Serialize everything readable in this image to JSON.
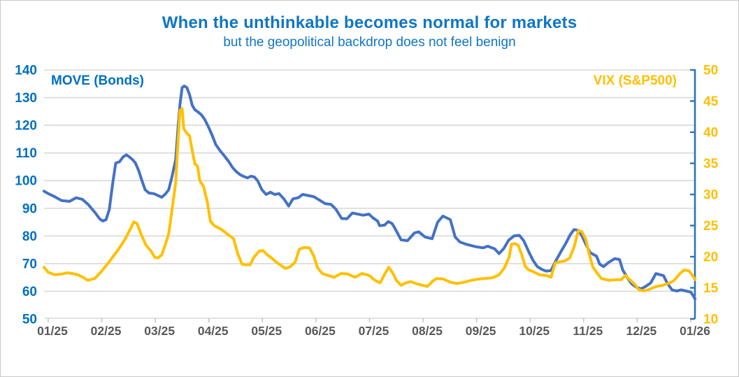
{
  "chart_data": {
    "type": "line",
    "title": "When the unthinkable becomes normal for markets",
    "subtitle": "but the geopolitical backdrop does not feel benign",
    "grid": true,
    "legend_position": "top-inside",
    "colors": {
      "title_text": "#1076c5",
      "left_axis_text": "#0070c0",
      "right_axis_text": "#ffc000",
      "x_axis_text": "#595959",
      "gridline": "#d9d9d9",
      "bottom_tick": "#bfbfbf",
      "right_spine": "#2e74b5",
      "move_line": "#4472c4",
      "vix_line": "#ffc000"
    },
    "x_axis": {
      "tick_labels": [
        "01/25",
        "02/25",
        "03/25",
        "04/25",
        "05/25",
        "06/25",
        "07/25",
        "08/25",
        "09/25",
        "10/25",
        "11/25",
        "12/25",
        "01/26"
      ]
    },
    "y_left": {
      "label": "MOVE (Bonds)",
      "min": 50,
      "max": 140,
      "step": 10,
      "tick_labels": [
        "50",
        "60",
        "70",
        "80",
        "90",
        "100",
        "110",
        "120",
        "130",
        "140"
      ]
    },
    "y_right": {
      "label": "VIX (S&P500)",
      "min": 10,
      "max": 50,
      "step": 5,
      "tick_labels": [
        "10",
        "15",
        "20",
        "25",
        "30",
        "35",
        "40",
        "45",
        "50"
      ]
    },
    "series": [
      {
        "name": "MOVE (Bonds)",
        "axis": "left",
        "color": "#4472c4",
        "points": [
          [
            -0.08,
            96.2
          ],
          [
            0,
            95.3
          ],
          [
            0.12,
            94.2
          ],
          [
            0.25,
            92.8
          ],
          [
            0.4,
            92.5
          ],
          [
            0.52,
            93.8
          ],
          [
            0.64,
            93.2
          ],
          [
            0.75,
            91.3
          ],
          [
            0.88,
            88.3
          ],
          [
            0.96,
            86.2
          ],
          [
            1.02,
            85.4
          ],
          [
            1.08,
            85.9
          ],
          [
            1.14,
            89.5
          ],
          [
            1.2,
            98.5
          ],
          [
            1.26,
            106.3
          ],
          [
            1.33,
            106.8
          ],
          [
            1.4,
            108.6
          ],
          [
            1.46,
            109.3
          ],
          [
            1.52,
            108.5
          ],
          [
            1.58,
            107.5
          ],
          [
            1.63,
            106.3
          ],
          [
            1.69,
            103.6
          ],
          [
            1.75,
            100
          ],
          [
            1.81,
            96.7
          ],
          [
            1.88,
            95.5
          ],
          [
            1.97,
            95.3
          ],
          [
            2.05,
            94.6
          ],
          [
            2.12,
            94
          ],
          [
            2.19,
            95.2
          ],
          [
            2.25,
            96.7
          ],
          [
            2.31,
            101.3
          ],
          [
            2.38,
            107.6
          ],
          [
            2.42,
            118
          ],
          [
            2.46,
            127.5
          ],
          [
            2.5,
            133.6
          ],
          [
            2.54,
            134.2
          ],
          [
            2.59,
            133.6
          ],
          [
            2.64,
            131
          ],
          [
            2.69,
            127.2
          ],
          [
            2.74,
            125.6
          ],
          [
            2.79,
            124.9
          ],
          [
            2.86,
            123.8
          ],
          [
            2.92,
            122.2
          ],
          [
            2.99,
            119.5
          ],
          [
            3.06,
            116.5
          ],
          [
            3.13,
            113
          ],
          [
            3.21,
            110.8
          ],
          [
            3.29,
            108.9
          ],
          [
            3.37,
            106.9
          ],
          [
            3.44,
            104.8
          ],
          [
            3.51,
            103.3
          ],
          [
            3.58,
            102.2
          ],
          [
            3.65,
            101.5
          ],
          [
            3.72,
            101
          ],
          [
            3.79,
            101.6
          ],
          [
            3.85,
            101.3
          ],
          [
            3.91,
            100
          ],
          [
            3.99,
            96.7
          ],
          [
            4.07,
            95
          ],
          [
            4.15,
            95.8
          ],
          [
            4.23,
            95
          ],
          [
            4.31,
            95.3
          ],
          [
            4.4,
            93.4
          ],
          [
            4.49,
            90.8
          ],
          [
            4.57,
            93.4
          ],
          [
            4.67,
            93.8
          ],
          [
            4.75,
            95
          ],
          [
            4.86,
            94.6
          ],
          [
            4.96,
            94.2
          ],
          [
            5.07,
            92.9
          ],
          [
            5.17,
            91.7
          ],
          [
            5.28,
            91.4
          ],
          [
            5.37,
            89.7
          ],
          [
            5.48,
            86.3
          ],
          [
            5.58,
            86.2
          ],
          [
            5.68,
            88.3
          ],
          [
            5.78,
            87.9
          ],
          [
            5.88,
            87.5
          ],
          [
            5.99,
            87.9
          ],
          [
            6.06,
            86.6
          ],
          [
            6.15,
            85.4
          ],
          [
            6.19,
            83.7
          ],
          [
            6.28,
            83.9
          ],
          [
            6.35,
            85.2
          ],
          [
            6.42,
            84.5
          ],
          [
            6.46,
            83.3
          ],
          [
            6.59,
            78.6
          ],
          [
            6.71,
            78.3
          ],
          [
            6.84,
            81.1
          ],
          [
            6.92,
            81.5
          ],
          [
            7.04,
            79.6
          ],
          [
            7.17,
            79
          ],
          [
            7.27,
            84.9
          ],
          [
            7.37,
            87.2
          ],
          [
            7.51,
            85.9
          ],
          [
            7.6,
            79.6
          ],
          [
            7.69,
            77.8
          ],
          [
            7.82,
            76.9
          ],
          [
            7.99,
            76.1
          ],
          [
            8.12,
            75.7
          ],
          [
            8.21,
            76.3
          ],
          [
            8.34,
            75.3
          ],
          [
            8.42,
            73.6
          ],
          [
            8.51,
            75.5
          ],
          [
            8.6,
            78.5
          ],
          [
            8.7,
            80
          ],
          [
            8.8,
            80.2
          ],
          [
            8.88,
            78.3
          ],
          [
            8.97,
            74.5
          ],
          [
            9.05,
            71.3
          ],
          [
            9.13,
            69
          ],
          [
            9.21,
            68
          ],
          [
            9.3,
            67.3
          ],
          [
            9.39,
            67.5
          ],
          [
            9.48,
            71
          ],
          [
            9.58,
            74.5
          ],
          [
            9.67,
            77.5
          ],
          [
            9.75,
            80.5
          ],
          [
            9.82,
            82.3
          ],
          [
            9.9,
            82
          ],
          [
            9.97,
            80
          ],
          [
            10.04,
            77
          ],
          [
            10.12,
            74
          ],
          [
            10.24,
            72.7
          ],
          [
            10.3,
            69.8
          ],
          [
            10.37,
            68.9
          ],
          [
            10.47,
            70.5
          ],
          [
            10.58,
            71.8
          ],
          [
            10.67,
            71.5
          ],
          [
            10.73,
            67.7
          ],
          [
            10.82,
            64.8
          ],
          [
            10.9,
            62.6
          ],
          [
            10.99,
            61.4
          ],
          [
            11.08,
            60.9
          ],
          [
            11.16,
            61.8
          ],
          [
            11.25,
            63
          ],
          [
            11.35,
            66.4
          ],
          [
            11.42,
            66
          ],
          [
            11.49,
            65.7
          ],
          [
            11.56,
            63
          ],
          [
            11.65,
            60.5
          ],
          [
            11.74,
            60.1
          ],
          [
            11.82,
            60.5
          ],
          [
            11.91,
            60.1
          ],
          [
            12,
            59.7
          ],
          [
            12.05,
            58.3
          ],
          [
            12.08,
            57.2
          ]
        ]
      },
      {
        "name": "VIX (S&P500)",
        "axis": "right",
        "color": "#ffc000",
        "points": [
          [
            -0.08,
            18.3
          ],
          [
            0,
            17.5
          ],
          [
            0.12,
            17.1
          ],
          [
            0.25,
            17.2
          ],
          [
            0.35,
            17.4
          ],
          [
            0.45,
            17.3
          ],
          [
            0.55,
            17.1
          ],
          [
            0.65,
            16.7
          ],
          [
            0.74,
            16.2
          ],
          [
            0.87,
            16.5
          ],
          [
            1,
            17.7
          ],
          [
            1.14,
            19.2
          ],
          [
            1.27,
            20.7
          ],
          [
            1.36,
            21.8
          ],
          [
            1.44,
            22.9
          ],
          [
            1.53,
            24.4
          ],
          [
            1.6,
            25.6
          ],
          [
            1.66,
            25.3
          ],
          [
            1.75,
            23.3
          ],
          [
            1.83,
            21.8
          ],
          [
            1.92,
            20.9
          ],
          [
            1.99,
            19.9
          ],
          [
            2.05,
            19.8
          ],
          [
            2.12,
            20.3
          ],
          [
            2.18,
            21.8
          ],
          [
            2.25,
            23.7
          ],
          [
            2.31,
            27.4
          ],
          [
            2.38,
            31.9
          ],
          [
            2.42,
            38
          ],
          [
            2.46,
            43.5
          ],
          [
            2.5,
            43.8
          ],
          [
            2.53,
            40.6
          ],
          [
            2.59,
            39.8
          ],
          [
            2.64,
            39.4
          ],
          [
            2.68,
            37.5
          ],
          [
            2.74,
            34.9
          ],
          [
            2.79,
            34.5
          ],
          [
            2.83,
            32.2
          ],
          [
            2.9,
            31.3
          ],
          [
            2.97,
            28.8
          ],
          [
            3.03,
            25.7
          ],
          [
            3.1,
            25
          ],
          [
            3.23,
            24.4
          ],
          [
            3.35,
            23.6
          ],
          [
            3.46,
            22.9
          ],
          [
            3.54,
            20.5
          ],
          [
            3.62,
            18.8
          ],
          [
            3.71,
            18.7
          ],
          [
            3.77,
            18.7
          ],
          [
            3.84,
            19.9
          ],
          [
            3.94,
            20.9
          ],
          [
            4.01,
            21
          ],
          [
            4.09,
            20.3
          ],
          [
            4.17,
            19.8
          ],
          [
            4.25,
            19.2
          ],
          [
            4.33,
            18.7
          ],
          [
            4.43,
            18.1
          ],
          [
            4.52,
            18.4
          ],
          [
            4.61,
            19.1
          ],
          [
            4.69,
            21.2
          ],
          [
            4.78,
            21.5
          ],
          [
            4.88,
            21.4
          ],
          [
            4.96,
            20.1
          ],
          [
            5.03,
            18.2
          ],
          [
            5.12,
            17.3
          ],
          [
            5.22,
            17
          ],
          [
            5.34,
            16.7
          ],
          [
            5.47,
            17.3
          ],
          [
            5.6,
            17.2
          ],
          [
            5.73,
            16.7
          ],
          [
            5.86,
            17.3
          ],
          [
            5.99,
            17
          ],
          [
            6.1,
            16.2
          ],
          [
            6.2,
            15.8
          ],
          [
            6.29,
            17.3
          ],
          [
            6.36,
            18.3
          ],
          [
            6.44,
            17.3
          ],
          [
            6.5,
            16.2
          ],
          [
            6.59,
            15.4
          ],
          [
            6.68,
            15.8
          ],
          [
            6.77,
            16
          ],
          [
            6.9,
            15.6
          ],
          [
            7,
            15.4
          ],
          [
            7.08,
            15.2
          ],
          [
            7.17,
            16
          ],
          [
            7.25,
            16.5
          ],
          [
            7.38,
            16.4
          ],
          [
            7.51,
            15.9
          ],
          [
            7.64,
            15.7
          ],
          [
            7.77,
            15.9
          ],
          [
            7.9,
            16.2
          ],
          [
            8.03,
            16.4
          ],
          [
            8.16,
            16.5
          ],
          [
            8.29,
            16.6
          ],
          [
            8.42,
            17.1
          ],
          [
            8.52,
            18.2
          ],
          [
            8.61,
            20
          ],
          [
            8.65,
            22
          ],
          [
            8.72,
            22.1
          ],
          [
            8.78,
            21.8
          ],
          [
            8.84,
            20.4
          ],
          [
            8.91,
            18.4
          ],
          [
            8.97,
            17.9
          ],
          [
            9.06,
            17.6
          ],
          [
            9.17,
            17.1
          ],
          [
            9.3,
            17
          ],
          [
            9.39,
            16.7
          ],
          [
            9.47,
            19
          ],
          [
            9.56,
            19.2
          ],
          [
            9.65,
            19.3
          ],
          [
            9.74,
            19.8
          ],
          [
            9.82,
            21.5
          ],
          [
            9.9,
            24.2
          ],
          [
            9.97,
            24
          ],
          [
            10.04,
            22.8
          ],
          [
            10.1,
            20.5
          ],
          [
            10.17,
            18.4
          ],
          [
            10.24,
            17.5
          ],
          [
            10.33,
            16.5
          ],
          [
            10.47,
            16.2
          ],
          [
            10.6,
            16.3
          ],
          [
            10.7,
            16.3
          ],
          [
            10.78,
            17
          ],
          [
            10.86,
            16.3
          ],
          [
            10.95,
            15.6
          ],
          [
            11.03,
            14.7
          ],
          [
            11.12,
            14.5
          ],
          [
            11.21,
            14.7
          ],
          [
            11.35,
            15.2
          ],
          [
            11.48,
            15.4
          ],
          [
            11.61,
            15.8
          ],
          [
            11.69,
            16.2
          ],
          [
            11.8,
            17.3
          ],
          [
            11.88,
            17.9
          ],
          [
            11.97,
            17.7
          ],
          [
            12.05,
            16.8
          ],
          [
            12.08,
            16.3
          ]
        ]
      }
    ]
  }
}
